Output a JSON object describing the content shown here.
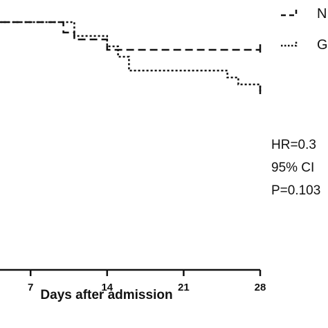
{
  "chart_data": {
    "type": "line",
    "xlabel": "Days after admission",
    "x_ticks": [
      "7",
      "14",
      "21",
      "28"
    ],
    "xlim": [
      0,
      28
    ],
    "ylim": [
      0,
      1
    ],
    "series": [
      {
        "name": "N",
        "style": "dashed",
        "color": "#111111",
        "steps": [
          [
            0,
            1.0
          ],
          [
            10,
            0.985
          ],
          [
            11,
            0.975
          ],
          [
            14,
            0.96
          ],
          [
            28,
            0.96
          ]
        ]
      },
      {
        "name": "G",
        "style": "dotted",
        "color": "#111111",
        "steps": [
          [
            0,
            1.0
          ],
          [
            11,
            0.98
          ],
          [
            14,
            0.965
          ],
          [
            15,
            0.95
          ],
          [
            16,
            0.93
          ],
          [
            25,
            0.92
          ],
          [
            26,
            0.91
          ],
          [
            28,
            0.9
          ]
        ]
      }
    ],
    "annotations": [
      "HR=0.3",
      "95% CI",
      "P=0.103"
    ]
  }
}
